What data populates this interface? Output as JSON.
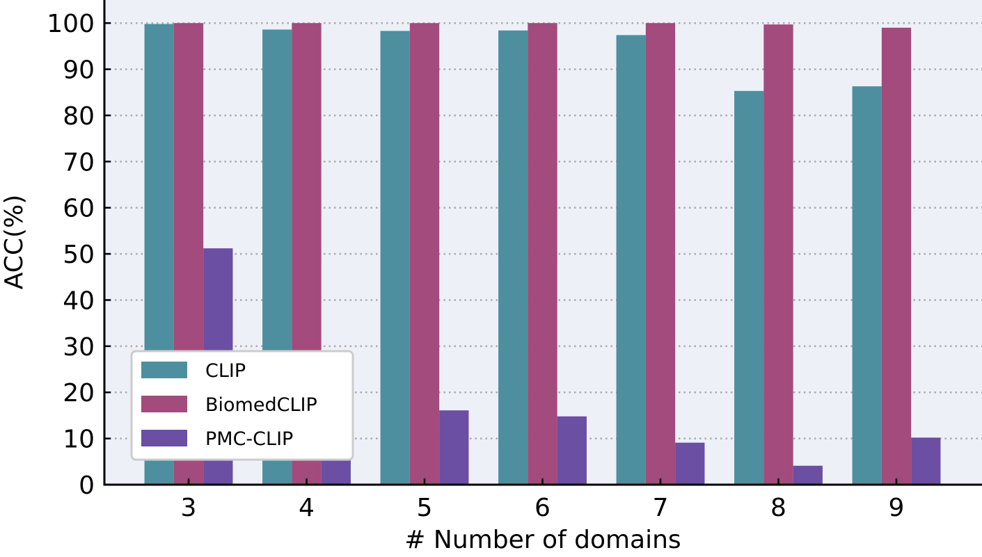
{
  "chart_data": {
    "type": "bar",
    "title": "",
    "xlabel": "# Number of domains",
    "ylabel": "ACC(%)",
    "categories": [
      "3",
      "4",
      "5",
      "6",
      "7",
      "8",
      "9"
    ],
    "ylim": [
      0,
      105
    ],
    "yticks": [
      0,
      10,
      20,
      30,
      40,
      50,
      60,
      70,
      80,
      90,
      100
    ],
    "grid": "horizontal dotted",
    "legend_placement": "lower-left",
    "series": [
      {
        "name": "CLIP",
        "color": "#4e8f9f",
        "values": [
          99.8,
          98.6,
          98.3,
          98.4,
          97.4,
          85.3,
          86.3
        ]
      },
      {
        "name": "BiomedCLIP",
        "color": "#a24b7c",
        "values": [
          100.0,
          100.0,
          100.0,
          100.0,
          100.0,
          99.7,
          99.0
        ]
      },
      {
        "name": "PMC-CLIP",
        "color": "#6a4fa3",
        "values": [
          51.2,
          6.0,
          16.1,
          14.8,
          9.1,
          4.1,
          10.2
        ]
      }
    ]
  },
  "colors": {
    "plot_background": "#eef0f8",
    "grid": "#aaaaaa",
    "axis": "#000000"
  }
}
